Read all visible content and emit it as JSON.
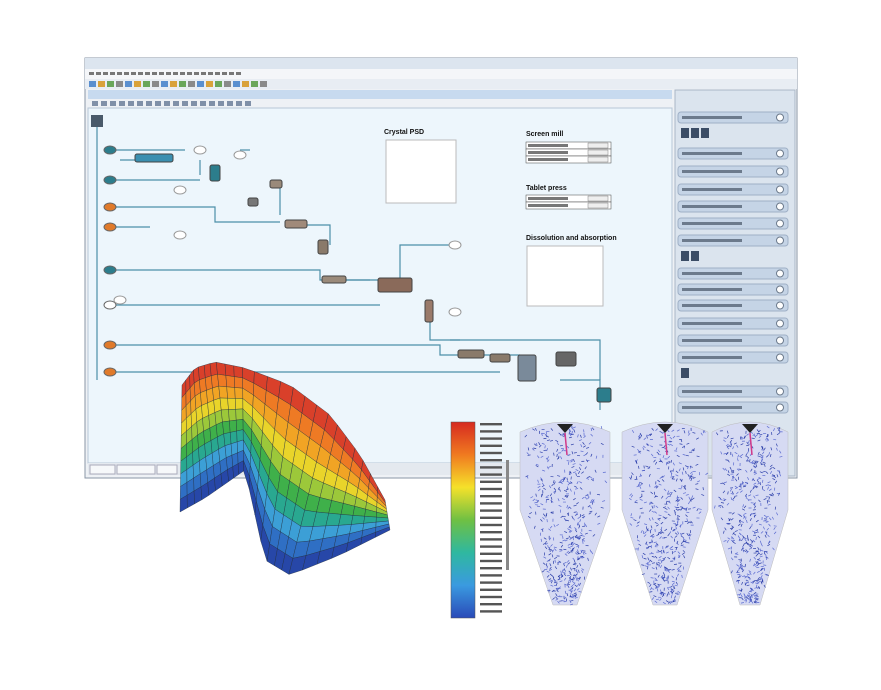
{
  "flowsheet": {
    "panels": {
      "crystal_psd": "Crystal PSD",
      "screen_mill": "Screen mill",
      "tablet_press": "Tablet press",
      "dissolution": "Dissolution and absorption"
    }
  }
}
